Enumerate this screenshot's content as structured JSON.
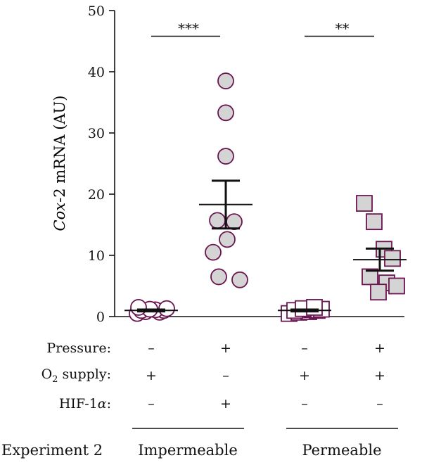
{
  "chart_data": {
    "type": "scatter",
    "ylabel": {
      "italic": "Cox",
      "rest": "-2 mRNA (AU)"
    },
    "ylim": [
      0,
      50
    ],
    "yticks": [
      "0",
      "10",
      "20",
      "30",
      "40",
      "50"
    ],
    "groups": [
      {
        "marker": "circle",
        "points": [
          0.5,
          0.7,
          0.8,
          1.0,
          1.0,
          1.1,
          1.2,
          1.3,
          1.5
        ],
        "mean": 1.0,
        "sem_low": 0.85,
        "sem_high": 1.15
      },
      {
        "marker": "circle",
        "points": [
          38.5,
          33.3,
          26.2,
          15.7,
          15.5,
          12.6,
          10.5,
          6.5,
          6.0
        ],
        "mean": 18.3,
        "sem_low": 14.4,
        "sem_high": 22.2
      },
      {
        "marker": "square",
        "points": [
          0.5,
          0.7,
          0.8,
          1.0,
          1.0,
          1.1,
          1.2,
          1.3,
          1.5
        ],
        "mean": 1.0,
        "sem_low": 0.85,
        "sem_high": 1.15
      },
      {
        "marker": "square",
        "points": [
          18.5,
          15.5,
          11.0,
          9.5,
          6.5,
          5.5,
          5.0,
          4.0
        ],
        "mean": 9.3,
        "sem_low": 7.5,
        "sem_high": 11.1
      }
    ],
    "significance": [
      {
        "label": "***",
        "y": 45.8
      },
      {
        "label": "**",
        "y": 45.8
      }
    ],
    "marker_fill": "#d4d4d4",
    "marker_stroke": "#6b1550"
  },
  "conditions": [
    {
      "label": "Pressure:",
      "values": [
        "–",
        "+",
        "–",
        "+"
      ]
    },
    {
      "o2_main": "O",
      "o2_sub": "2",
      "o2_rest": " supply:",
      "values": [
        "+",
        "–",
        "+",
        "+"
      ]
    },
    {
      "hif_main": "HIF-1",
      "hif_alpha": "α",
      "hif_rest": ":",
      "values": [
        "–",
        "+",
        "–",
        "–"
      ]
    }
  ],
  "experiment": {
    "label": "Experiment 2",
    "groups": [
      "Impermeable",
      "Permeable"
    ]
  }
}
